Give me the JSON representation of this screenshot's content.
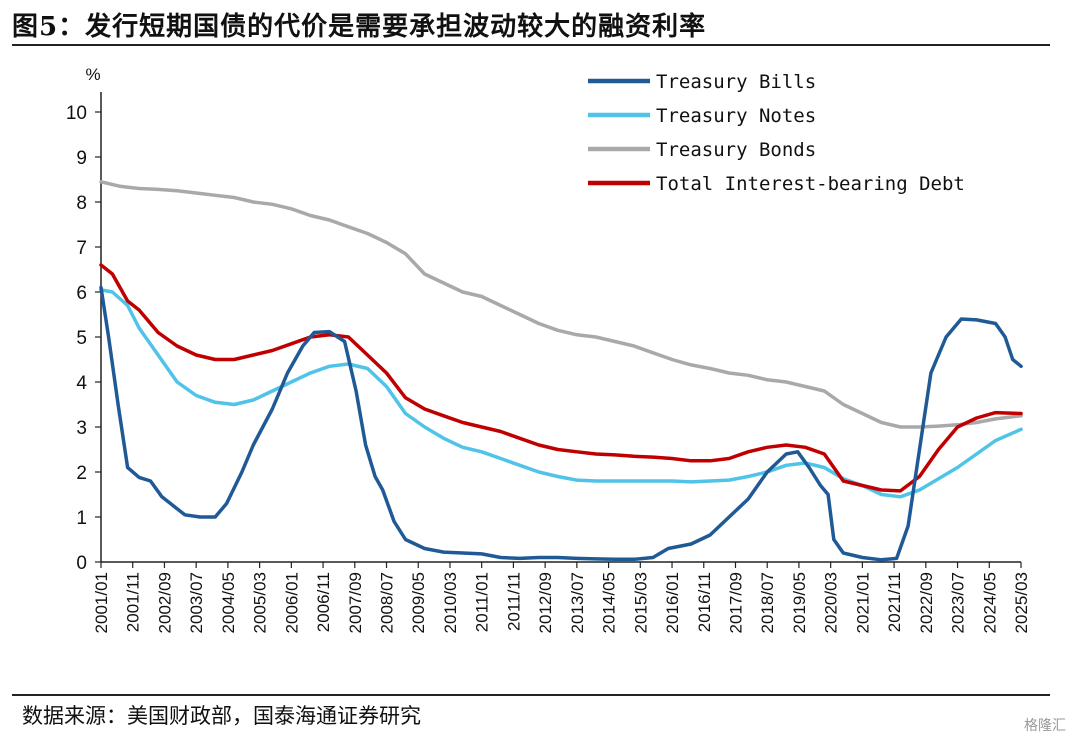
{
  "title": "图5：发行短期国债的代价是需要承担波动较大的融资利率",
  "source": "数据来源：美国财政部，国泰海通证券研究",
  "watermark": "格隆汇",
  "chart_data": {
    "type": "line",
    "ylabel": "%",
    "ylim": [
      0,
      10
    ],
    "yticks": [
      0,
      1,
      2,
      3,
      4,
      5,
      6,
      7,
      8,
      9,
      10
    ],
    "xlim": [
      2001.0,
      2025.167
    ],
    "xtick_labels": [
      "2001/01",
      "2001/11",
      "2002/09",
      "2003/07",
      "2004/05",
      "2005/03",
      "2006/01",
      "2006/11",
      "2007/09",
      "2008/07",
      "2009/05",
      "2010/03",
      "2011/01",
      "2011/11",
      "2012/09",
      "2013/07",
      "2014/05",
      "2015/03",
      "2016/01",
      "2016/11",
      "2017/09",
      "2018/07",
      "2019/05",
      "2020/03",
      "2021/01",
      "2021/11",
      "2022/09",
      "2023/07",
      "2024/05",
      "2025/03"
    ],
    "grid": false,
    "legend_position": "top-right",
    "series": [
      {
        "name": "Treasury Bills",
        "color": "#1f5a96",
        "points": [
          [
            2001.0,
            6.1
          ],
          [
            2001.2,
            5.0
          ],
          [
            2001.45,
            3.5
          ],
          [
            2001.7,
            2.1
          ],
          [
            2002.0,
            1.88
          ],
          [
            2002.3,
            1.8
          ],
          [
            2002.6,
            1.45
          ],
          [
            2002.9,
            1.25
          ],
          [
            2003.2,
            1.05
          ],
          [
            2003.6,
            1.0
          ],
          [
            2004.0,
            1.0
          ],
          [
            2004.3,
            1.3
          ],
          [
            2004.7,
            2.0
          ],
          [
            2005.0,
            2.6
          ],
          [
            2005.5,
            3.4
          ],
          [
            2005.9,
            4.2
          ],
          [
            2006.3,
            4.8
          ],
          [
            2006.6,
            5.1
          ],
          [
            2007.0,
            5.12
          ],
          [
            2007.4,
            4.9
          ],
          [
            2007.7,
            3.8
          ],
          [
            2007.95,
            2.6
          ],
          [
            2008.2,
            1.9
          ],
          [
            2008.4,
            1.6
          ],
          [
            2008.7,
            0.9
          ],
          [
            2009.0,
            0.5
          ],
          [
            2009.5,
            0.3
          ],
          [
            2010.0,
            0.22
          ],
          [
            2010.5,
            0.2
          ],
          [
            2011.0,
            0.18
          ],
          [
            2011.5,
            0.1
          ],
          [
            2012.0,
            0.08
          ],
          [
            2012.5,
            0.1
          ],
          [
            2013.0,
            0.1
          ],
          [
            2013.5,
            0.08
          ],
          [
            2014.0,
            0.07
          ],
          [
            2014.5,
            0.06
          ],
          [
            2015.0,
            0.06
          ],
          [
            2015.5,
            0.1
          ],
          [
            2015.9,
            0.3
          ],
          [
            2016.5,
            0.4
          ],
          [
            2017.0,
            0.6
          ],
          [
            2017.5,
            1.0
          ],
          [
            2018.0,
            1.4
          ],
          [
            2018.5,
            2.0
          ],
          [
            2019.0,
            2.4
          ],
          [
            2019.3,
            2.45
          ],
          [
            2019.6,
            2.1
          ],
          [
            2019.9,
            1.7
          ],
          [
            2020.1,
            1.5
          ],
          [
            2020.25,
            0.5
          ],
          [
            2020.5,
            0.2
          ],
          [
            2021.0,
            0.1
          ],
          [
            2021.5,
            0.05
          ],
          [
            2021.9,
            0.08
          ],
          [
            2022.2,
            0.8
          ],
          [
            2022.5,
            2.5
          ],
          [
            2022.8,
            4.2
          ],
          [
            2023.2,
            5.0
          ],
          [
            2023.6,
            5.4
          ],
          [
            2024.0,
            5.38
          ],
          [
            2024.5,
            5.3
          ],
          [
            2024.75,
            5.0
          ],
          [
            2024.95,
            4.5
          ],
          [
            2025.17,
            4.35
          ]
        ]
      },
      {
        "name": "Treasury Notes",
        "color": "#4fc3e8",
        "points": [
          [
            2001.0,
            6.05
          ],
          [
            2001.3,
            6.0
          ],
          [
            2001.7,
            5.7
          ],
          [
            2002.0,
            5.2
          ],
          [
            2002.5,
            4.6
          ],
          [
            2003.0,
            4.0
          ],
          [
            2003.5,
            3.7
          ],
          [
            2004.0,
            3.55
          ],
          [
            2004.5,
            3.5
          ],
          [
            2005.0,
            3.6
          ],
          [
            2005.5,
            3.8
          ],
          [
            2006.0,
            4.0
          ],
          [
            2006.5,
            4.2
          ],
          [
            2007.0,
            4.35
          ],
          [
            2007.5,
            4.4
          ],
          [
            2008.0,
            4.3
          ],
          [
            2008.5,
            3.9
          ],
          [
            2009.0,
            3.3
          ],
          [
            2009.5,
            3.0
          ],
          [
            2010.0,
            2.75
          ],
          [
            2010.5,
            2.55
          ],
          [
            2011.0,
            2.45
          ],
          [
            2011.5,
            2.3
          ],
          [
            2012.0,
            2.15
          ],
          [
            2012.5,
            2.0
          ],
          [
            2013.0,
            1.9
          ],
          [
            2013.5,
            1.82
          ],
          [
            2014.0,
            1.8
          ],
          [
            2014.5,
            1.8
          ],
          [
            2015.0,
            1.8
          ],
          [
            2015.5,
            1.8
          ],
          [
            2016.0,
            1.8
          ],
          [
            2016.5,
            1.78
          ],
          [
            2017.0,
            1.8
          ],
          [
            2017.5,
            1.82
          ],
          [
            2018.0,
            1.9
          ],
          [
            2018.5,
            2.0
          ],
          [
            2019.0,
            2.15
          ],
          [
            2019.5,
            2.2
          ],
          [
            2020.0,
            2.1
          ],
          [
            2020.5,
            1.85
          ],
          [
            2021.0,
            1.7
          ],
          [
            2021.5,
            1.5
          ],
          [
            2022.0,
            1.45
          ],
          [
            2022.5,
            1.6
          ],
          [
            2023.0,
            1.85
          ],
          [
            2023.5,
            2.1
          ],
          [
            2024.0,
            2.4
          ],
          [
            2024.5,
            2.7
          ],
          [
            2025.17,
            2.95
          ]
        ]
      },
      {
        "name": "Treasury Bonds",
        "color": "#a9a9a9",
        "points": [
          [
            2001.0,
            8.45
          ],
          [
            2001.5,
            8.35
          ],
          [
            2002.0,
            8.3
          ],
          [
            2002.5,
            8.28
          ],
          [
            2003.0,
            8.25
          ],
          [
            2003.5,
            8.2
          ],
          [
            2004.0,
            8.15
          ],
          [
            2004.5,
            8.1
          ],
          [
            2005.0,
            8.0
          ],
          [
            2005.5,
            7.95
          ],
          [
            2006.0,
            7.85
          ],
          [
            2006.5,
            7.7
          ],
          [
            2007.0,
            7.6
          ],
          [
            2007.5,
            7.45
          ],
          [
            2008.0,
            7.3
          ],
          [
            2008.5,
            7.1
          ],
          [
            2009.0,
            6.85
          ],
          [
            2009.5,
            6.4
          ],
          [
            2010.0,
            6.2
          ],
          [
            2010.5,
            6.0
          ],
          [
            2011.0,
            5.9
          ],
          [
            2011.5,
            5.7
          ],
          [
            2012.0,
            5.5
          ],
          [
            2012.5,
            5.3
          ],
          [
            2013.0,
            5.15
          ],
          [
            2013.5,
            5.05
          ],
          [
            2014.0,
            5.0
          ],
          [
            2014.5,
            4.9
          ],
          [
            2015.0,
            4.8
          ],
          [
            2015.5,
            4.65
          ],
          [
            2016.0,
            4.5
          ],
          [
            2016.5,
            4.38
          ],
          [
            2017.0,
            4.3
          ],
          [
            2017.5,
            4.2
          ],
          [
            2018.0,
            4.15
          ],
          [
            2018.5,
            4.05
          ],
          [
            2019.0,
            4.0
          ],
          [
            2019.5,
            3.9
          ],
          [
            2020.0,
            3.8
          ],
          [
            2020.5,
            3.5
          ],
          [
            2021.0,
            3.3
          ],
          [
            2021.5,
            3.1
          ],
          [
            2022.0,
            3.0
          ],
          [
            2022.5,
            3.0
          ],
          [
            2023.0,
            3.02
          ],
          [
            2023.5,
            3.05
          ],
          [
            2024.0,
            3.1
          ],
          [
            2024.5,
            3.18
          ],
          [
            2025.17,
            3.25
          ]
        ]
      },
      {
        "name": "Total Interest-bearing Debt",
        "color": "#c00000",
        "points": [
          [
            2001.0,
            6.6
          ],
          [
            2001.3,
            6.4
          ],
          [
            2001.7,
            5.8
          ],
          [
            2002.0,
            5.6
          ],
          [
            2002.5,
            5.1
          ],
          [
            2003.0,
            4.8
          ],
          [
            2003.5,
            4.6
          ],
          [
            2004.0,
            4.5
          ],
          [
            2004.5,
            4.5
          ],
          [
            2005.0,
            4.6
          ],
          [
            2005.5,
            4.7
          ],
          [
            2006.0,
            4.85
          ],
          [
            2006.5,
            5.0
          ],
          [
            2007.0,
            5.05
          ],
          [
            2007.5,
            5.0
          ],
          [
            2008.0,
            4.6
          ],
          [
            2008.5,
            4.2
          ],
          [
            2009.0,
            3.65
          ],
          [
            2009.5,
            3.4
          ],
          [
            2010.0,
            3.25
          ],
          [
            2010.5,
            3.1
          ],
          [
            2011.0,
            3.0
          ],
          [
            2011.5,
            2.9
          ],
          [
            2012.0,
            2.75
          ],
          [
            2012.5,
            2.6
          ],
          [
            2013.0,
            2.5
          ],
          [
            2013.5,
            2.45
          ],
          [
            2014.0,
            2.4
          ],
          [
            2014.5,
            2.38
          ],
          [
            2015.0,
            2.35
          ],
          [
            2015.5,
            2.33
          ],
          [
            2016.0,
            2.3
          ],
          [
            2016.5,
            2.25
          ],
          [
            2017.0,
            2.25
          ],
          [
            2017.5,
            2.3
          ],
          [
            2018.0,
            2.45
          ],
          [
            2018.5,
            2.55
          ],
          [
            2019.0,
            2.6
          ],
          [
            2019.5,
            2.55
          ],
          [
            2020.0,
            2.4
          ],
          [
            2020.5,
            1.8
          ],
          [
            2021.0,
            1.7
          ],
          [
            2021.5,
            1.6
          ],
          [
            2022.0,
            1.58
          ],
          [
            2022.5,
            1.9
          ],
          [
            2023.0,
            2.5
          ],
          [
            2023.5,
            3.0
          ],
          [
            2024.0,
            3.2
          ],
          [
            2024.5,
            3.32
          ],
          [
            2025.17,
            3.3
          ]
        ]
      }
    ]
  }
}
